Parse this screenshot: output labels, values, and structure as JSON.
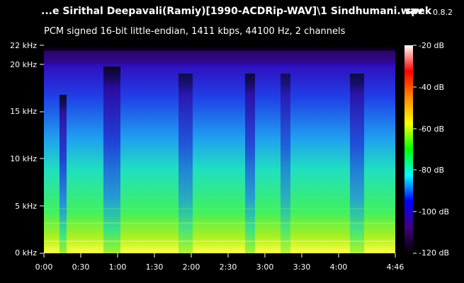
{
  "header": {
    "file_title": "...e Sirithal Deepavali(Ramiy)[1990-ACDRip-WAV]\\1 Sindhumani.wav",
    "app_name": "spek",
    "app_version": "0.8.2",
    "audio_info": "PCM signed 16-bit little-endian, 1411 kbps, 44100 Hz, 2 channels"
  },
  "axes": {
    "frequency_labels": [
      "22 kHz",
      "20 kHz",
      "15 kHz",
      "10 kHz",
      "5 kHz",
      "0 kHz"
    ],
    "time_labels": [
      "0:00",
      "0:30",
      "1:00",
      "1:30",
      "2:00",
      "2:30",
      "3:00",
      "3:30",
      "4:00",
      "4:46"
    ]
  },
  "colorbar": {
    "labels": [
      "-20 dB",
      "-40 dB",
      "-60 dB",
      "-80 dB",
      "-100 dB",
      "-120 dB"
    ],
    "gradient": [
      "#ffffff",
      "#ff0000",
      "#ff8800",
      "#ffff00",
      "#00ff00",
      "#00ffff",
      "#0000ff",
      "#400080",
      "#000000"
    ]
  }
}
